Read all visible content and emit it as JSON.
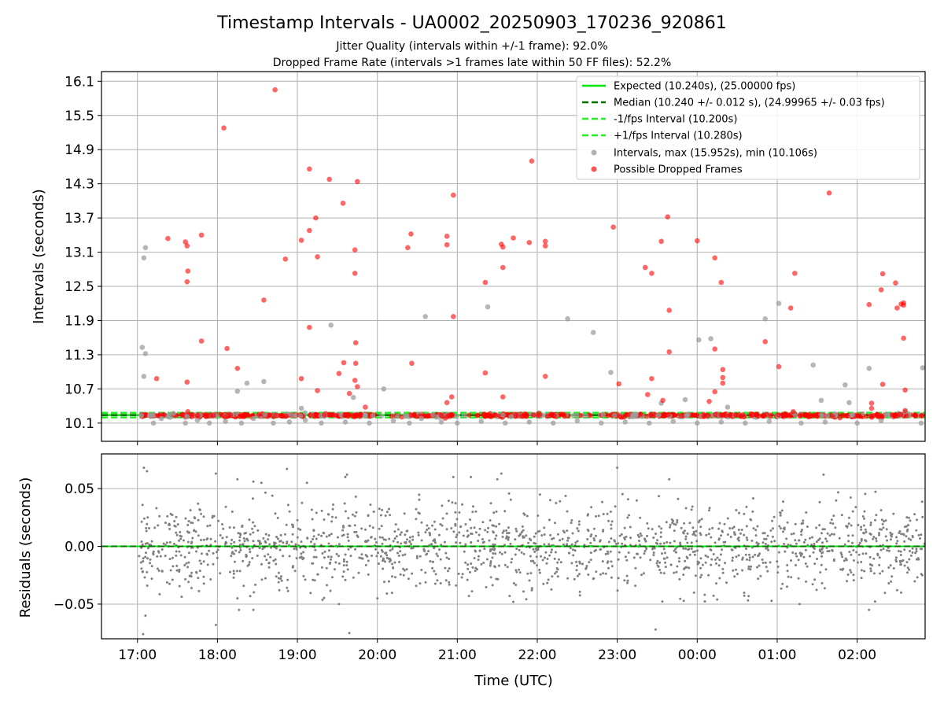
{
  "chart_data": [
    {
      "type": "scatter",
      "title": "Timestamp Intervals - UA0002_20250903_170236_920861",
      "subtitle_lines": [
        "Jitter Quality (intervals within +/-1 frame): 92.0%",
        "Dropped Frame Rate (intervals >1 frames late within 50 FF files): 52.2%"
      ],
      "ylabel": "Intervals (seconds)",
      "xlim_hours": [
        16.55,
        26.85
      ],
      "ylim": [
        9.78,
        16.27
      ],
      "yticks": [
        10.1,
        10.7,
        11.3,
        11.9,
        12.5,
        13.1,
        13.7,
        14.3,
        14.9,
        15.5,
        16.1
      ],
      "ytick_labels": [
        "10.1",
        "10.7",
        "11.3",
        "11.9",
        "12.5",
        "13.1",
        "13.7",
        "14.3",
        "14.9",
        "15.5",
        "16.1"
      ],
      "lines": {
        "expected": 10.24,
        "median": 10.24,
        "minus_fps": 10.2,
        "plus_fps": 10.28
      },
      "legend": [
        "Expected (10.240s), (25.00000 fps)",
        "Median (10.240 +/- 0.012 s), (24.99965 +/- 0.03 fps)",
        "-1/fps Interval (10.200s)",
        "+1/fps Interval (10.280s)",
        "Intervals, max (15.952s), min (10.106s)",
        "Possible Dropped Frames"
      ],
      "legend_position": "top-right",
      "grid": true,
      "series": [
        {
          "name": "Intervals",
          "color": "#9e9e9e",
          "points": [
            [
              17.06,
              11.43
            ],
            [
              17.08,
              13.0
            ],
            [
              17.1,
              13.18
            ],
            [
              17.08,
              10.92
            ],
            [
              17.1,
              11.32
            ],
            [
              17.3,
              10.18
            ],
            [
              17.62,
              10.21
            ],
            [
              18.25,
              10.66
            ],
            [
              18.37,
              10.8
            ],
            [
              18.58,
              10.83
            ],
            [
              19.05,
              10.36
            ],
            [
              19.42,
              11.82
            ],
            [
              19.7,
              10.55
            ],
            [
              20.08,
              10.7
            ],
            [
              20.6,
              11.97
            ],
            [
              20.55,
              10.18
            ],
            [
              21.38,
              12.14
            ],
            [
              22.38,
              11.93
            ],
            [
              22.7,
              11.69
            ],
            [
              22.92,
              10.99
            ],
            [
              23.55,
              10.45
            ],
            [
              23.85,
              10.51
            ],
            [
              24.02,
              11.56
            ],
            [
              24.17,
              11.58
            ],
            [
              24.38,
              10.38
            ],
            [
              24.85,
              11.93
            ],
            [
              25.02,
              12.2
            ],
            [
              25.2,
              10.28
            ],
            [
              25.45,
              11.12
            ],
            [
              25.55,
              10.5
            ],
            [
              25.85,
              10.77
            ],
            [
              25.9,
              10.46
            ],
            [
              26.15,
              11.06
            ],
            [
              26.6,
              10.3
            ],
            [
              26.82,
              11.07
            ],
            [
              17.05,
              10.23
            ],
            [
              17.2,
              10.1
            ],
            [
              17.45,
              10.27
            ],
            [
              17.6,
              10.1
            ],
            [
              17.75,
              10.15
            ],
            [
              17.9,
              10.1
            ],
            [
              18.1,
              10.13
            ],
            [
              18.3,
              10.1
            ],
            [
              18.45,
              10.18
            ],
            [
              18.7,
              10.1
            ],
            [
              18.9,
              10.12
            ],
            [
              19.1,
              10.15
            ],
            [
              19.3,
              10.1
            ],
            [
              19.6,
              10.12
            ],
            [
              19.9,
              10.1
            ],
            [
              20.2,
              10.14
            ],
            [
              20.4,
              10.1
            ],
            [
              20.8,
              10.12
            ],
            [
              21.0,
              10.1
            ],
            [
              21.3,
              10.13
            ],
            [
              21.6,
              10.1
            ],
            [
              21.9,
              10.12
            ],
            [
              22.2,
              10.1
            ],
            [
              22.5,
              10.14
            ],
            [
              22.8,
              10.1
            ],
            [
              23.1,
              10.12
            ],
            [
              23.4,
              10.1
            ],
            [
              23.7,
              10.13
            ],
            [
              24.0,
              10.1
            ],
            [
              24.3,
              10.12
            ],
            [
              24.6,
              10.1
            ],
            [
              24.9,
              10.13
            ],
            [
              25.3,
              10.1
            ],
            [
              25.6,
              10.12
            ],
            [
              26.0,
              10.1
            ],
            [
              26.3,
              10.14
            ],
            [
              26.8,
              10.1
            ]
          ]
        },
        {
          "name": "Possible Dropped Frames",
          "color": "#ff0000",
          "points": [
            [
              17.38,
              13.34
            ],
            [
              17.6,
              13.28
            ],
            [
              17.62,
              13.21
            ],
            [
              17.62,
              12.58
            ],
            [
              17.63,
              12.77
            ],
            [
              17.62,
              10.82
            ],
            [
              17.63,
              10.3
            ],
            [
              17.8,
              13.4
            ],
            [
              17.8,
              11.54
            ],
            [
              17.24,
              10.88
            ],
            [
              18.08,
              15.28
            ],
            [
              18.12,
              11.41
            ],
            [
              18.25,
              11.06
            ],
            [
              18.58,
              12.26
            ],
            [
              18.72,
              15.95
            ],
            [
              18.85,
              12.98
            ],
            [
              19.05,
              13.31
            ],
            [
              19.05,
              10.88
            ],
            [
              19.15,
              14.56
            ],
            [
              19.15,
              13.48
            ],
            [
              19.15,
              11.78
            ],
            [
              19.23,
              13.7
            ],
            [
              19.25,
              13.02
            ],
            [
              19.25,
              10.67
            ],
            [
              19.4,
              14.38
            ],
            [
              19.52,
              10.97
            ],
            [
              19.57,
              13.96
            ],
            [
              19.58,
              11.16
            ],
            [
              19.65,
              10.62
            ],
            [
              19.72,
              13.14
            ],
            [
              19.72,
              12.73
            ],
            [
              19.72,
              10.85
            ],
            [
              19.73,
              11.15
            ],
            [
              19.73,
              11.51
            ],
            [
              19.75,
              14.34
            ],
            [
              19.75,
              10.74
            ],
            [
              19.85,
              10.38
            ],
            [
              20.38,
              13.18
            ],
            [
              20.42,
              13.42
            ],
            [
              20.43,
              11.15
            ],
            [
              20.87,
              13.38
            ],
            [
              20.87,
              13.23
            ],
            [
              20.87,
              10.46
            ],
            [
              20.93,
              10.56
            ],
            [
              20.95,
              14.1
            ],
            [
              20.95,
              11.97
            ],
            [
              21.35,
              12.57
            ],
            [
              21.35,
              10.98
            ],
            [
              21.55,
              13.24
            ],
            [
              21.57,
              13.19
            ],
            [
              21.57,
              12.83
            ],
            [
              21.57,
              10.56
            ],
            [
              21.7,
              13.35
            ],
            [
              21.9,
              13.27
            ],
            [
              21.93,
              14.7
            ],
            [
              22.1,
              13.29
            ],
            [
              22.1,
              13.21
            ],
            [
              22.1,
              10.92
            ],
            [
              22.95,
              13.54
            ],
            [
              23.02,
              10.79
            ],
            [
              23.35,
              12.83
            ],
            [
              23.38,
              10.6
            ],
            [
              23.43,
              12.73
            ],
            [
              23.43,
              10.88
            ],
            [
              23.55,
              13.29
            ],
            [
              23.57,
              10.5
            ],
            [
              23.63,
              13.72
            ],
            [
              23.65,
              12.08
            ],
            [
              23.65,
              11.35
            ],
            [
              24.0,
              13.3
            ],
            [
              24.22,
              13.0
            ],
            [
              24.22,
              10.65
            ],
            [
              24.22,
              11.4
            ],
            [
              24.15,
              10.48
            ],
            [
              24.3,
              12.57
            ],
            [
              24.32,
              11.04
            ],
            [
              24.32,
              10.9
            ],
            [
              24.32,
              10.8
            ],
            [
              24.85,
              11.53
            ],
            [
              25.02,
              11.09
            ],
            [
              25.17,
              12.12
            ],
            [
              25.22,
              12.73
            ],
            [
              25.2,
              10.3
            ],
            [
              25.65,
              14.14
            ],
            [
              26.15,
              12.18
            ],
            [
              26.18,
              10.45
            ],
            [
              26.18,
              10.36
            ],
            [
              26.3,
              12.44
            ],
            [
              26.32,
              12.72
            ],
            [
              26.32,
              10.78
            ],
            [
              26.48,
              12.56
            ],
            [
              26.5,
              12.12
            ],
            [
              26.55,
              12.19
            ],
            [
              26.58,
              12.21
            ],
            [
              26.58,
              12.17
            ],
            [
              26.58,
              11.59
            ],
            [
              26.6,
              10.68
            ],
            [
              26.6,
              10.32
            ]
          ]
        }
      ]
    },
    {
      "type": "scatter",
      "ylabel": "Residuals (seconds)",
      "xlabel": "Time (UTC)",
      "xlim_hours": [
        16.55,
        26.85
      ],
      "ylim": [
        -0.08,
        0.08
      ],
      "yticks": [
        -0.05,
        0.0,
        0.05
      ],
      "ytick_labels": [
        "−0.05",
        "0.00",
        "0.05"
      ],
      "xticks_hours": [
        17,
        18,
        19,
        20,
        21,
        22,
        23,
        24,
        25,
        26
      ],
      "xtick_labels": [
        "17:00",
        "18:00",
        "19:00",
        "20:00",
        "21:00",
        "22:00",
        "23:00",
        "00:00",
        "01:00",
        "02:00"
      ],
      "zero_line": 0.0,
      "grid": true,
      "series": [
        {
          "name": "Residuals",
          "color": "#808080",
          "approx_count": 1650,
          "approx_std": 0.018,
          "outliers": [
            [
              17.08,
              0.068
            ],
            [
              17.12,
              0.065
            ],
            [
              17.1,
              -0.06
            ],
            [
              17.07,
              -0.076
            ],
            [
              17.98,
              0.063
            ],
            [
              17.98,
              -0.068
            ],
            [
              18.25,
              0.058
            ],
            [
              18.25,
              -0.045
            ],
            [
              18.27,
              -0.055
            ],
            [
              18.45,
              0.056
            ],
            [
              18.45,
              -0.055
            ],
            [
              18.55,
              0.055
            ],
            [
              18.87,
              0.067
            ],
            [
              19.12,
              0.055
            ],
            [
              19.6,
              0.06
            ],
            [
              19.62,
              0.062
            ],
            [
              19.65,
              -0.075
            ],
            [
              19.52,
              -0.05
            ],
            [
              20.0,
              -0.045
            ],
            [
              20.95,
              0.06
            ],
            [
              21.17,
              0.06
            ],
            [
              21.55,
              0.063
            ],
            [
              21.5,
              0.058
            ],
            [
              21.7,
              -0.048
            ],
            [
              23.0,
              0.068
            ],
            [
              23.48,
              -0.072
            ],
            [
              23.65,
              0.058
            ],
            [
              24.25,
              -0.046
            ],
            [
              25.28,
              -0.05
            ],
            [
              25.58,
              0.062
            ],
            [
              26.15,
              -0.055
            ],
            [
              26.5,
              -0.038
            ],
            [
              26.55,
              -0.04
            ]
          ]
        }
      ]
    }
  ]
}
